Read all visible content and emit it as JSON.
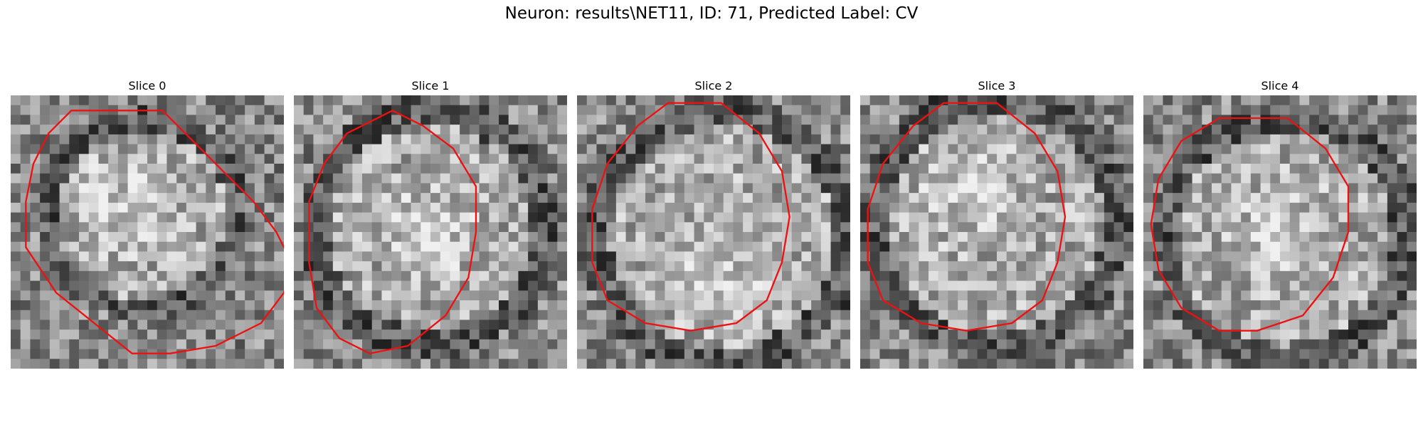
{
  "figure": {
    "title": "Neuron: results\\NET11, ID: 71, Predicted Label: CV"
  },
  "panels": [
    {
      "title": "Slice 0"
    },
    {
      "title": "Slice 1"
    },
    {
      "title": "Slice 2"
    },
    {
      "title": "Slice 3"
    },
    {
      "title": "Slice 4"
    }
  ],
  "contour_color": "#ee1111"
}
